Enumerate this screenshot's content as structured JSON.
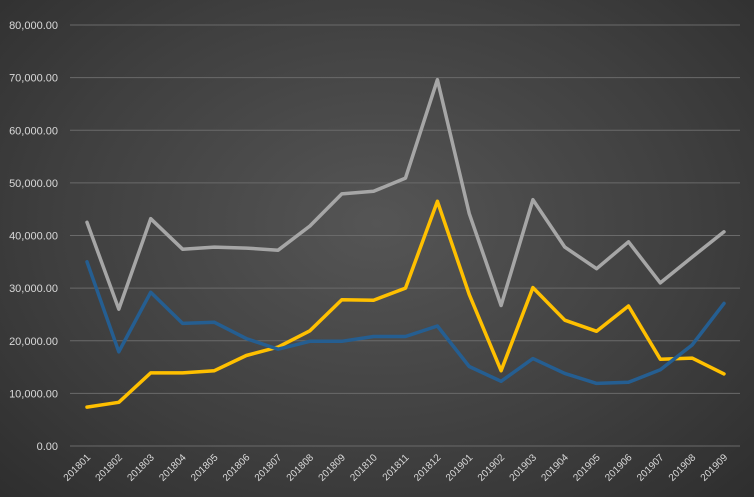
{
  "chart_data": {
    "type": "line",
    "title": "",
    "xlabel": "",
    "ylabel": "",
    "ylim": [
      0,
      80000
    ],
    "yticks": [
      "0.00",
      "10,000.00",
      "20,000.00",
      "30,000.00",
      "40,000.00",
      "50,000.00",
      "60,000.00",
      "70,000.00",
      "80,000.00"
    ],
    "ytick_values": [
      0,
      10000,
      20000,
      30000,
      40000,
      50000,
      60000,
      70000,
      80000
    ],
    "grid": true,
    "categories": [
      "201801",
      "201802",
      "201803",
      "201804",
      "201805",
      "201806",
      "201807",
      "201808",
      "201809",
      "201810",
      "201811",
      "201812",
      "201901",
      "201902",
      "201903",
      "201904",
      "201905",
      "201906",
      "201907",
      "201908",
      "201909"
    ],
    "series": [
      {
        "color": "#a6a6a6",
        "values": [
          42500,
          26000,
          43200,
          37400,
          37800,
          37600,
          37200,
          41800,
          47900,
          48400,
          50900,
          69600,
          44200,
          26700,
          46800,
          37800,
          33700,
          38800,
          31000,
          35900,
          40700
        ]
      },
      {
        "color": "#ffc000",
        "values": [
          7400,
          8300,
          13900,
          13900,
          14300,
          17200,
          18800,
          21900,
          27800,
          27700,
          30000,
          46500,
          28800,
          14300,
          30100,
          23900,
          21800,
          26600,
          16500,
          16700,
          13700
        ]
      },
      {
        "color": "#255e91",
        "values": [
          35000,
          17900,
          29200,
          23300,
          23500,
          20400,
          18400,
          19900,
          19900,
          20800,
          20800,
          22800,
          15100,
          12300,
          16600,
          13800,
          11900,
          12100,
          14500,
          19200,
          27100
        ]
      }
    ]
  }
}
